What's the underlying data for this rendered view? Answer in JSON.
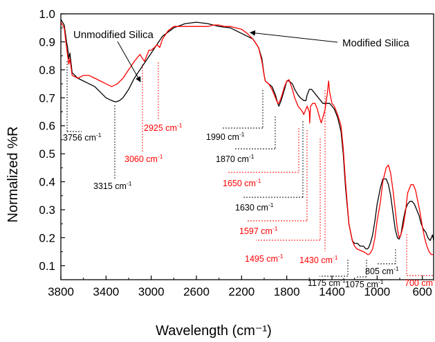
{
  "chart_data": {
    "type": "line",
    "xlabel": "Wavelength (cm⁻¹)",
    "ylabel": "Normalized %R",
    "xlim": [
      3800,
      500
    ],
    "ylim": [
      0.05,
      1.0
    ],
    "x_ticks": [
      3800,
      3400,
      3000,
      2600,
      2200,
      1800,
      1400,
      1000,
      600
    ],
    "x_tick_labels": [
      "3800",
      "3400",
      "3000",
      "2600",
      "2200",
      "1800",
      "1400",
      "1000",
      "600"
    ],
    "y_ticks": [
      0.1,
      0.2,
      0.3,
      0.4,
      0.5,
      0.6,
      0.7,
      0.8,
      0.9,
      1.0
    ],
    "y_tick_labels": [
      "0.1",
      "0.2",
      "0.3",
      "0.4",
      "0.5",
      "0.6",
      "0.7",
      "0.8",
      "0.9",
      "1.0"
    ],
    "colors": {
      "black": "#000000",
      "red": "#ff0000"
    },
    "series": [
      {
        "name": "Unmodified Silica",
        "color": "#000000",
        "x": [
          3800,
          3770,
          3750,
          3740,
          3730,
          3720,
          3700,
          3650,
          3600,
          3550,
          3500,
          3450,
          3400,
          3350,
          3315,
          3280,
          3250,
          3200,
          3150,
          3100,
          3050,
          3000,
          2950,
          2900,
          2800,
          2700,
          2600,
          2500,
          2400,
          2300,
          2200,
          2150,
          2100,
          2050,
          2020,
          2000,
          1990,
          1960,
          1930,
          1900,
          1880,
          1870,
          1850,
          1820,
          1800,
          1780,
          1750,
          1730,
          1700,
          1680,
          1650,
          1630,
          1620,
          1600,
          1580,
          1560,
          1540,
          1520,
          1500,
          1480,
          1450,
          1420,
          1400,
          1380,
          1350,
          1320,
          1300,
          1280,
          1250,
          1220,
          1200,
          1180,
          1175,
          1150,
          1120,
          1100,
          1085,
          1075,
          1060,
          1040,
          1020,
          1000,
          970,
          950,
          920,
          900,
          880,
          860,
          840,
          820,
          805,
          790,
          770,
          750,
          730,
          710,
          690,
          670,
          650,
          630,
          610,
          590,
          570,
          550,
          530,
          510,
          500
        ],
        "values": [
          0.98,
          0.96,
          0.9,
          0.88,
          0.84,
          0.86,
          0.79,
          0.77,
          0.76,
          0.75,
          0.74,
          0.72,
          0.7,
          0.69,
          0.685,
          0.69,
          0.7,
          0.73,
          0.77,
          0.8,
          0.83,
          0.86,
          0.89,
          0.92,
          0.95,
          0.965,
          0.97,
          0.965,
          0.955,
          0.95,
          0.93,
          0.92,
          0.91,
          0.88,
          0.84,
          0.78,
          0.76,
          0.75,
          0.74,
          0.71,
          0.68,
          0.67,
          0.69,
          0.73,
          0.76,
          0.76,
          0.75,
          0.73,
          0.71,
          0.7,
          0.69,
          0.69,
          0.71,
          0.73,
          0.73,
          0.72,
          0.71,
          0.7,
          0.69,
          0.68,
          0.68,
          0.68,
          0.67,
          0.66,
          0.63,
          0.58,
          0.5,
          0.38,
          0.25,
          0.19,
          0.18,
          0.18,
          0.18,
          0.17,
          0.17,
          0.16,
          0.16,
          0.165,
          0.18,
          0.21,
          0.26,
          0.32,
          0.38,
          0.41,
          0.41,
          0.39,
          0.35,
          0.29,
          0.23,
          0.2,
          0.195,
          0.21,
          0.26,
          0.3,
          0.32,
          0.33,
          0.33,
          0.32,
          0.3,
          0.28,
          0.25,
          0.23,
          0.22,
          0.2,
          0.19,
          0.21,
          0.19
        ]
      },
      {
        "name": "Modified Silica",
        "color": "#ff0000",
        "x": [
          3800,
          3770,
          3750,
          3740,
          3730,
          3720,
          3700,
          3650,
          3600,
          3550,
          3500,
          3450,
          3400,
          3350,
          3300,
          3250,
          3200,
          3150,
          3100,
          3060,
          3040,
          3020,
          3000,
          2970,
          2950,
          2925,
          2900,
          2850,
          2800,
          2700,
          2600,
          2500,
          2450,
          2400,
          2350,
          2300,
          2250,
          2200,
          2150,
          2100,
          2050,
          2020,
          2000,
          1990,
          1960,
          1930,
          1900,
          1880,
          1870,
          1850,
          1820,
          1800,
          1780,
          1750,
          1730,
          1700,
          1680,
          1660,
          1650,
          1640,
          1620,
          1600,
          1597,
          1590,
          1570,
          1550,
          1530,
          1510,
          1495,
          1480,
          1460,
          1440,
          1430,
          1420,
          1400,
          1380,
          1350,
          1320,
          1300,
          1280,
          1250,
          1220,
          1200,
          1180,
          1150,
          1120,
          1100,
          1085,
          1075,
          1060,
          1040,
          1020,
          1000,
          970,
          950,
          920,
          900,
          880,
          860,
          840,
          820,
          805,
          790,
          770,
          750,
          730,
          700,
          680,
          660,
          640,
          620,
          600,
          580,
          560,
          540,
          520,
          500
        ],
        "values": [
          0.97,
          0.95,
          0.88,
          0.85,
          0.82,
          0.84,
          0.78,
          0.77,
          0.78,
          0.78,
          0.77,
          0.76,
          0.75,
          0.74,
          0.75,
          0.77,
          0.8,
          0.83,
          0.855,
          0.83,
          0.85,
          0.87,
          0.87,
          0.88,
          0.89,
          0.88,
          0.91,
          0.94,
          0.955,
          0.955,
          0.955,
          0.955,
          0.96,
          0.96,
          0.955,
          0.955,
          0.95,
          0.945,
          0.93,
          0.91,
          0.88,
          0.83,
          0.78,
          0.76,
          0.75,
          0.73,
          0.7,
          0.68,
          0.68,
          0.7,
          0.74,
          0.76,
          0.765,
          0.73,
          0.7,
          0.67,
          0.66,
          0.65,
          0.64,
          0.65,
          0.67,
          0.65,
          0.61,
          0.67,
          0.68,
          0.68,
          0.66,
          0.63,
          0.61,
          0.63,
          0.66,
          0.72,
          0.76,
          0.72,
          0.68,
          0.67,
          0.64,
          0.6,
          0.52,
          0.4,
          0.25,
          0.19,
          0.17,
          0.16,
          0.155,
          0.15,
          0.145,
          0.14,
          0.14,
          0.145,
          0.16,
          0.2,
          0.26,
          0.33,
          0.4,
          0.45,
          0.46,
          0.43,
          0.37,
          0.3,
          0.23,
          0.2,
          0.21,
          0.24,
          0.29,
          0.36,
          0.39,
          0.39,
          0.37,
          0.33,
          0.29,
          0.24,
          0.2,
          0.17,
          0.15,
          0.14,
          0.14
        ]
      }
    ],
    "legend_callouts": [
      {
        "text": "Unmodified Silica",
        "color": "#000000"
      },
      {
        "text": "Modified Silica",
        "color": "#000000"
      }
    ],
    "peak_annotations": [
      {
        "label": "3756",
        "unit": "cm",
        "exp": "-1",
        "color": "#000000",
        "x": 3756
      },
      {
        "label": "3315",
        "unit": "cm",
        "exp": "-1",
        "color": "#000000",
        "x": 3315
      },
      {
        "label": "3060",
        "unit": "cm",
        "exp": "-1",
        "color": "#ff0000",
        "x": 3060
      },
      {
        "label": "2925",
        "unit": "cm",
        "exp": "-1",
        "color": "#ff0000",
        "x": 2925
      },
      {
        "label": "1990",
        "unit": "cm",
        "exp": "-1",
        "color": "#000000",
        "x": 1990
      },
      {
        "label": "1870",
        "unit": "cm",
        "exp": "-1",
        "color": "#000000",
        "x": 1870
      },
      {
        "label": "1650",
        "unit": "cm",
        "exp": "-1",
        "color": "#ff0000",
        "x": 1650
      },
      {
        "label": "1630",
        "unit": "cm",
        "exp": "-1",
        "color": "#000000",
        "x": 1630
      },
      {
        "label": "1597",
        "unit": "cm",
        "exp": "-1",
        "color": "#ff0000",
        "x": 1597
      },
      {
        "label": "1495",
        "unit": "cm",
        "exp": "-1",
        "color": "#ff0000",
        "x": 1495
      },
      {
        "label": "1430",
        "unit": "cm",
        "exp": "-1",
        "color": "#ff0000",
        "x": 1430
      },
      {
        "label": "1175",
        "unit": "cm",
        "exp": "-1",
        "color": "#000000",
        "x": 1175
      },
      {
        "label": "1075",
        "unit": "cm",
        "exp": "-1",
        "color": "#000000",
        "x": 1075
      },
      {
        "label": "805",
        "unit": "cm",
        "exp": "-1",
        "color": "#000000",
        "x": 805
      },
      {
        "label": "700",
        "unit": "cm",
        "exp": "-1",
        "color": "#ff0000",
        "x": 700
      }
    ],
    "grid": false,
    "legend": "callout-annotations"
  }
}
